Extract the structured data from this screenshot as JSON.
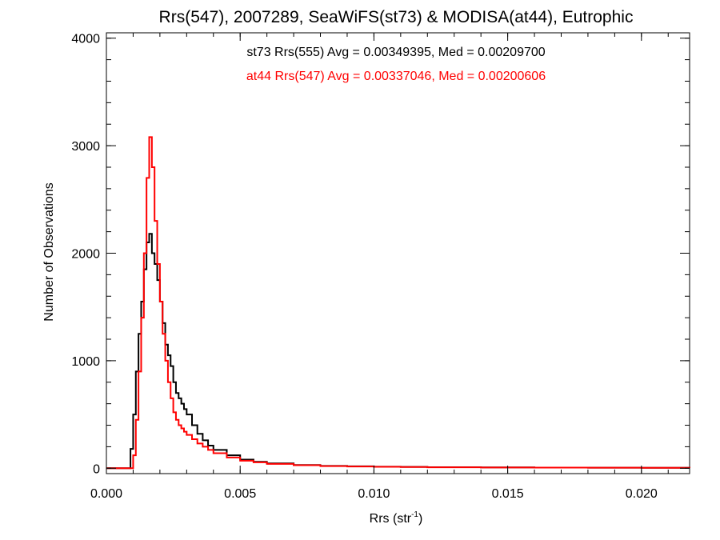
{
  "chart_data": {
    "type": "line",
    "title": "Rrs(547), 2007289, SeaWiFS(st73) & MODISA(at44), Eutrophic",
    "xlabel_main": "Rrs (str",
    "xlabel_sup": "-1",
    "xlabel_end": ")",
    "ylabel": "Number of Observations",
    "xlim": [
      0.0,
      0.0218
    ],
    "ylim": [
      -50,
      4050
    ],
    "x_ticks": [
      {
        "value": 0.0,
        "label": "0.000"
      },
      {
        "value": 0.005,
        "label": "0.005"
      },
      {
        "value": 0.01,
        "label": "0.010"
      },
      {
        "value": 0.015,
        "label": "0.015"
      },
      {
        "value": 0.02,
        "label": "0.020"
      }
    ],
    "x_minor_step": 0.001,
    "y_ticks": [
      {
        "value": 0,
        "label": "0"
      },
      {
        "value": 1000,
        "label": "1000"
      },
      {
        "value": 2000,
        "label": "2000"
      },
      {
        "value": 3000,
        "label": "3000"
      },
      {
        "value": 4000,
        "label": "4000"
      }
    ],
    "y_minor_step": 200,
    "grid": false,
    "annotations": [
      {
        "text": "st73 Rrs(555) Avg = 0.00349395, Med = 0.00209700",
        "color": "#000000"
      },
      {
        "text": "at44 Rrs(547) Avg = 0.00337046, Med = 0.00200606",
        "color": "#ff0000"
      }
    ],
    "series": [
      {
        "color": "#000000",
        "x": [
          0.0,
          0.0008,
          0.0009,
          0.001,
          0.0011,
          0.0012,
          0.0013,
          0.0014,
          0.0015,
          0.0016,
          0.0017,
          0.0018,
          0.0019,
          0.002,
          0.0021,
          0.0022,
          0.0023,
          0.0024,
          0.0025,
          0.0026,
          0.0027,
          0.0028,
          0.0029,
          0.003,
          0.0032,
          0.0034,
          0.0036,
          0.0038,
          0.004,
          0.0045,
          0.005,
          0.0055,
          0.006,
          0.007,
          0.008,
          0.009,
          0.01,
          0.011,
          0.012,
          0.014,
          0.016,
          0.018,
          0.02,
          0.0218
        ],
        "y": [
          0,
          0,
          180,
          500,
          900,
          1250,
          1550,
          1850,
          2100,
          2180,
          2000,
          1900,
          1750,
          1550,
          1350,
          1150,
          1050,
          950,
          800,
          700,
          650,
          600,
          550,
          500,
          400,
          320,
          260,
          210,
          170,
          120,
          80,
          60,
          45,
          30,
          22,
          18,
          14,
          12,
          10,
          8,
          6,
          5,
          4,
          3
        ]
      },
      {
        "color": "#ff0000",
        "x": [
          0.0,
          0.0009,
          0.001,
          0.0011,
          0.0012,
          0.0013,
          0.0014,
          0.0015,
          0.0016,
          0.0017,
          0.0018,
          0.0019,
          0.002,
          0.0021,
          0.0022,
          0.0023,
          0.0024,
          0.0025,
          0.0026,
          0.0027,
          0.0028,
          0.0029,
          0.003,
          0.0032,
          0.0034,
          0.0036,
          0.0038,
          0.004,
          0.0045,
          0.005,
          0.0055,
          0.006,
          0.007,
          0.008,
          0.009,
          0.01,
          0.011,
          0.012,
          0.014,
          0.016,
          0.018,
          0.02,
          0.0218
        ],
        "y": [
          0,
          0,
          120,
          450,
          900,
          1400,
          2000,
          2700,
          3080,
          2800,
          2300,
          1900,
          1550,
          1250,
          1000,
          800,
          650,
          520,
          450,
          400,
          370,
          340,
          310,
          270,
          230,
          200,
          170,
          140,
          100,
          70,
          55,
          40,
          28,
          20,
          16,
          13,
          11,
          9,
          7,
          6,
          5,
          4,
          3
        ]
      }
    ]
  }
}
